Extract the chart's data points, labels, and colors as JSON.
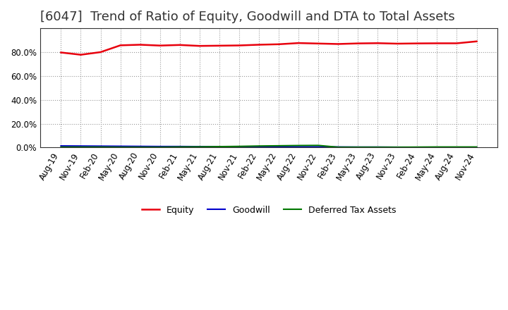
{
  "title": "[6047]  Trend of Ratio of Equity, Goodwill and DTA to Total Assets",
  "x_labels": [
    "Aug-19",
    "Nov-19",
    "Feb-20",
    "May-20",
    "Aug-20",
    "Nov-20",
    "Feb-21",
    "May-21",
    "Aug-21",
    "Nov-21",
    "Feb-22",
    "May-22",
    "Aug-22",
    "Nov-22",
    "Feb-23",
    "May-23",
    "Aug-23",
    "Nov-23",
    "Feb-24",
    "May-24",
    "Aug-24",
    "Nov-24"
  ],
  "equity": [
    0.797,
    0.778,
    0.8,
    0.857,
    0.862,
    0.855,
    0.86,
    0.852,
    0.854,
    0.856,
    0.862,
    0.866,
    0.876,
    0.872,
    0.868,
    0.873,
    0.875,
    0.871,
    0.873,
    0.874,
    0.874,
    0.89
  ],
  "goodwill": [
    0.014,
    0.013,
    0.012,
    0.011,
    0.01,
    0.009,
    0.009,
    0.008,
    0.008,
    0.007,
    0.007,
    0.007,
    0.006,
    0.006,
    0.005,
    0.004,
    0.004,
    0.003,
    0.002,
    0.002,
    0.001,
    0.001
  ],
  "dta": [
    0.004,
    0.004,
    0.004,
    0.003,
    0.003,
    0.003,
    0.005,
    0.006,
    0.008,
    0.01,
    0.013,
    0.015,
    0.017,
    0.018,
    0.003,
    0.003,
    0.003,
    0.003,
    0.004,
    0.005,
    0.005,
    0.005
  ],
  "equity_color": "#e8000d",
  "goodwill_color": "#0000cc",
  "dta_color": "#007700",
  "ylim": [
    0,
    1.0
  ],
  "yticks": [
    0.0,
    0.2,
    0.4,
    0.6,
    0.8
  ],
  "background_color": "#ffffff",
  "plot_bg_color": "#ffffff",
  "grid_color": "#999999",
  "title_fontsize": 13,
  "tick_fontsize": 8.5,
  "legend_fontsize": 9
}
